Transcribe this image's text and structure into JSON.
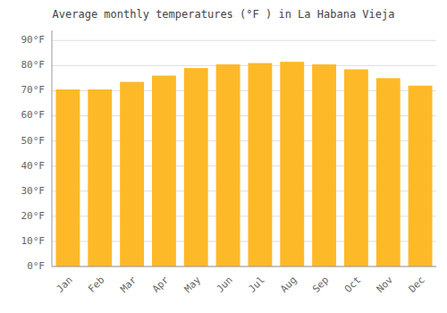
{
  "chart_data": {
    "type": "bar",
    "title": "Average monthly temperatures (°F ) in La Habana Vieja",
    "categories": [
      "Jan",
      "Feb",
      "Mar",
      "Apr",
      "May",
      "Jun",
      "Jul",
      "Aug",
      "Sep",
      "Oct",
      "Nov",
      "Dec"
    ],
    "values": [
      70.5,
      70.5,
      73.5,
      76,
      79,
      80.5,
      81,
      81.5,
      80.5,
      78.5,
      75,
      72
    ],
    "color": "#FDB927",
    "ylim": [
      0,
      94
    ],
    "yticks": [
      {
        "value": 0,
        "label": "0°F"
      },
      {
        "value": 10,
        "label": "10°F"
      },
      {
        "value": 20,
        "label": "20°F"
      },
      {
        "value": 30,
        "label": "30°F"
      },
      {
        "value": 40,
        "label": "40°F"
      },
      {
        "value": 50,
        "label": "50°F"
      },
      {
        "value": 60,
        "label": "60°F"
      },
      {
        "value": 70,
        "label": "70°F"
      },
      {
        "value": 80,
        "label": "80°F"
      },
      {
        "value": 90,
        "label": "90°F"
      }
    ],
    "grid": true
  }
}
